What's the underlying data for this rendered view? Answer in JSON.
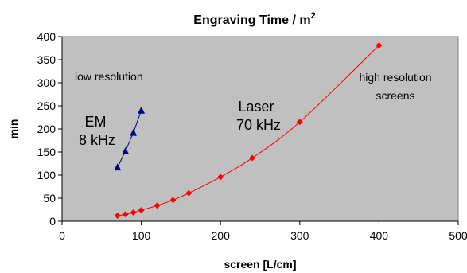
{
  "chart_data": {
    "type": "line",
    "title_main": "Engraving Time / m",
    "title_sup": "2",
    "xlabel": "screen [L/cm]",
    "ylabel": "min",
    "xlim": [
      0,
      500
    ],
    "ylim": [
      0,
      400
    ],
    "xticks": [
      0,
      100,
      200,
      300,
      400,
      500
    ],
    "yticks": [
      0,
      50,
      100,
      150,
      200,
      250,
      300,
      350,
      400
    ],
    "plot_background": "#c0c0c0",
    "series": [
      {
        "color": "#000080",
        "marker": "triangle",
        "x": [
          70,
          80,
          90,
          100
        ],
        "y": [
          117,
          152,
          192,
          240
        ]
      },
      {
        "color": "#ff0000",
        "marker": "diamond",
        "x": [
          70,
          80,
          90,
          100,
          120,
          140,
          160,
          200,
          240,
          300,
          400
        ],
        "y": [
          12,
          15,
          19,
          24,
          34,
          46,
          61,
          96,
          137,
          215,
          381
        ],
        "smooth": true
      }
    ],
    "annotations": {
      "low": "low resolution",
      "high_line1": "high resolution",
      "high_line2": "screens",
      "em_line1": "EM",
      "em_line2": "8 kHz",
      "laser_line1": "Laser",
      "laser_line2": "70 kHz"
    }
  }
}
